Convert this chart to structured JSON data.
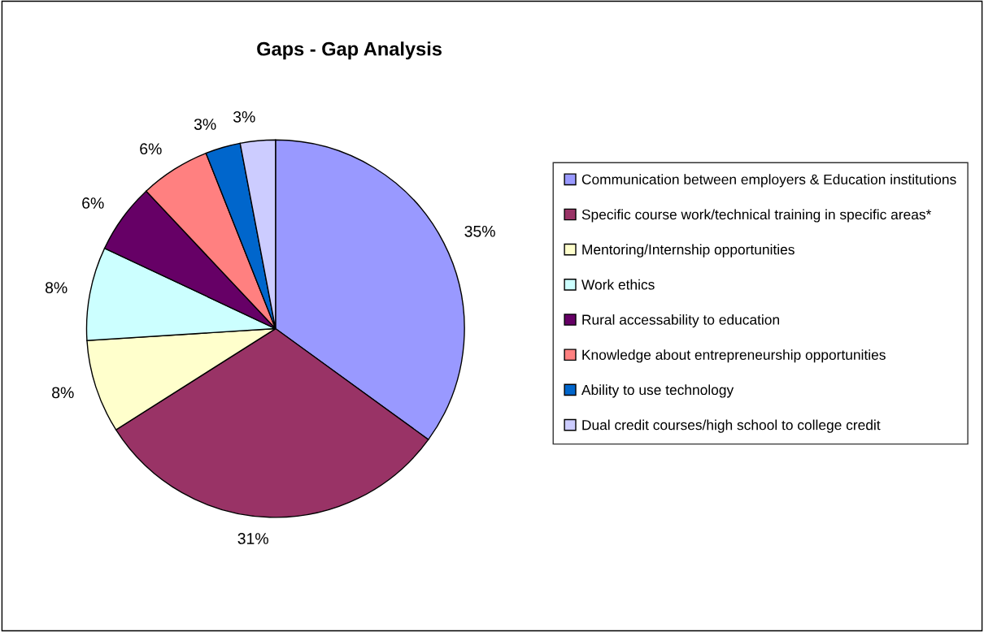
{
  "chart_data": {
    "type": "pie",
    "title": "Gaps - Gap Analysis",
    "categories": [
      "Communication between employers & Education institutions",
      "Specific course work/technical training in specific areas*",
      "Mentoring/Internship opportunities",
      "Work ethics",
      "Rural accessability to education",
      "Knowledge about entrepreneurship opportunities",
      "Ability to use technology",
      "Dual credit courses/high school to college credit"
    ],
    "values": [
      35,
      31,
      8,
      8,
      6,
      6,
      3,
      3
    ],
    "value_labels": [
      "35%",
      "31%",
      "8%",
      "8%",
      "6%",
      "6%",
      "3%",
      "3%"
    ],
    "colors": [
      "#9999ff",
      "#993366",
      "#ffffcc",
      "#ccffff",
      "#660066",
      "#ff8080",
      "#0066cc",
      "#ccccff"
    ],
    "legend": "right"
  }
}
